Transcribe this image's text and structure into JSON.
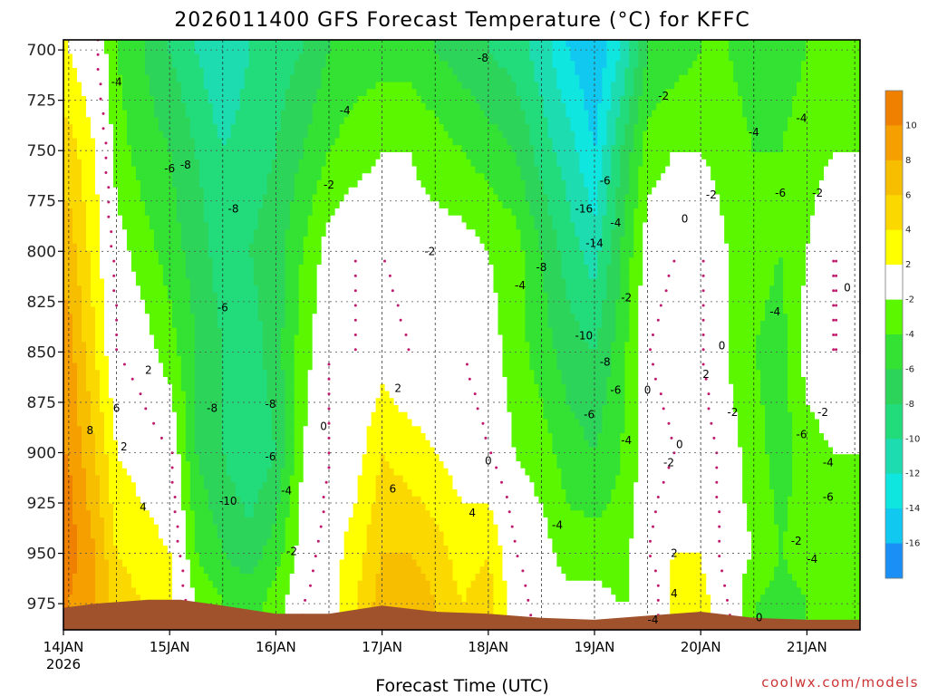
{
  "chart_data": {
    "type": "heatmap",
    "title": "2026011400 GFS Forecast Temperature (°C) for KFFC",
    "xlabel": "Forecast Time (UTC)",
    "ylabel": "",
    "watermark": "coolwx.com/models",
    "y_ticks": [
      700,
      725,
      750,
      775,
      800,
      825,
      850,
      875,
      900,
      925,
      950,
      975
    ],
    "ylim": [
      695,
      988
    ],
    "x_ticks": [
      "14JAN",
      "15JAN",
      "16JAN",
      "17JAN",
      "18JAN",
      "19JAN",
      "20JAN",
      "21JAN"
    ],
    "x_year": "2026",
    "xlim_days": [
      0,
      7.5
    ],
    "colorbar": {
      "labels": [
        "10",
        "8",
        "6",
        "4",
        "2",
        "-2",
        "-4",
        "-6",
        "-8",
        "-10",
        "-12",
        "-14",
        "-16"
      ],
      "colors": {
        "c10": "#f08000",
        "c8": "#f5a000",
        "c6": "#f7be00",
        "c4": "#fad800",
        "c2": "#ffff00",
        "c0": "#ffffff",
        "cm2": "#5af700",
        "cm4": "#33e233",
        "cm6": "#2dd45a",
        "cm8": "#22dc7c",
        "cm10": "#1cdcb0",
        "cm12": "#10e6e0",
        "cm14": "#10c8f0",
        "cm16": "#1a8ff5",
        "ground": "#a0522d",
        "line": "#c01a6e"
      }
    },
    "column_profiles": {
      "times_days": [
        0.05,
        0.3,
        0.5,
        0.75,
        1.0,
        1.25,
        1.5,
        1.75,
        2.0,
        2.25,
        2.5,
        2.75,
        3.0,
        3.25,
        3.5,
        3.75,
        4.0,
        4.25,
        4.5,
        4.75,
        5.0,
        5.25,
        5.5,
        5.75,
        6.0,
        6.25,
        6.5,
        6.75,
        7.0,
        7.25,
        7.45
      ],
      "levels_hpa": [
        700,
        750,
        800,
        850,
        900,
        950,
        975
      ],
      "temperature_c": [
        [
          2,
          5,
          7,
          9,
          10,
          11,
          10
        ],
        [
          0,
          2,
          3,
          4,
          6,
          8,
          8
        ],
        [
          -4,
          -3,
          -1,
          0,
          2,
          4,
          5
        ],
        [
          -6,
          -5,
          -3,
          -1,
          1,
          3,
          4
        ],
        [
          -8,
          -6,
          -5,
          -3,
          0,
          2,
          3
        ],
        [
          -10,
          -8,
          -7,
          -6,
          -6,
          -4,
          -2
        ],
        [
          -12,
          -10,
          -9,
          -8,
          -8,
          -6,
          -4
        ],
        [
          -10,
          -9,
          -8,
          -9,
          -10,
          -7,
          -5
        ],
        [
          -9,
          -8,
          -7,
          -7,
          -8,
          -5,
          -3
        ],
        [
          -8,
          -6,
          -4,
          -3,
          -2,
          -1,
          0
        ],
        [
          -6,
          -4,
          -1,
          0,
          0,
          1,
          1
        ],
        [
          -5,
          -3,
          0,
          0,
          1,
          3,
          4
        ],
        [
          -5,
          -2,
          0,
          1,
          4,
          6,
          7
        ],
        [
          -5,
          -2,
          -1,
          0,
          3,
          6,
          8
        ],
        [
          -6,
          -3,
          -1,
          0,
          2,
          5,
          6
        ],
        [
          -7,
          -4,
          -1,
          0,
          1,
          3,
          4
        ],
        [
          -8,
          -5,
          -2,
          -1,
          0,
          4,
          5
        ],
        [
          -9,
          -6,
          -3,
          -3,
          -2,
          0,
          1
        ],
        [
          -11,
          -9,
          -6,
          -5,
          -3,
          -1,
          -1
        ],
        [
          -14,
          -11,
          -9,
          -7,
          -5,
          -3,
          -1
        ],
        [
          -16,
          -14,
          -11,
          -8,
          -6,
          -3,
          -1
        ],
        [
          -12,
          -8,
          -6,
          -5,
          -4,
          -3,
          -2
        ],
        [
          -6,
          -3,
          -1,
          0,
          -1,
          0,
          -2
        ],
        [
          -5,
          -2,
          0,
          1,
          0,
          2,
          3
        ],
        [
          -4,
          -2,
          0,
          0,
          1,
          2,
          3
        ],
        [
          -4,
          -3,
          -2,
          -2,
          -1,
          -1,
          0
        ],
        [
          -5,
          -4,
          -3,
          -4,
          -3,
          -2,
          -4
        ],
        [
          -5,
          -4,
          -4,
          -5,
          -5,
          -4,
          -5
        ],
        [
          -4,
          -3,
          -2,
          -1,
          -3,
          -3,
          -4
        ],
        [
          -3,
          -2,
          0,
          0,
          -2,
          -3,
          -3
        ],
        [
          -3,
          -2,
          0,
          -1,
          -2,
          -3,
          -4
        ]
      ]
    },
    "contour_labels": [
      {
        "text": "-4",
        "day": 0.5,
        "p": 716
      },
      {
        "text": "-8",
        "day": 3.95,
        "p": 704
      },
      {
        "text": "-4",
        "day": 2.65,
        "p": 730
      },
      {
        "text": "-6",
        "day": 1.0,
        "p": 759
      },
      {
        "text": "-8",
        "day": 1.15,
        "p": 757
      },
      {
        "text": "-8",
        "day": 1.6,
        "p": 779
      },
      {
        "text": "-2",
        "day": 2.5,
        "p": 767
      },
      {
        "text": "-2",
        "day": 3.45,
        "p": 800
      },
      {
        "text": "-6",
        "day": 1.5,
        "p": 828
      },
      {
        "text": "2",
        "day": 0.8,
        "p": 859
      },
      {
        "text": "6",
        "day": 0.5,
        "p": 878
      },
      {
        "text": "8",
        "day": 0.25,
        "p": 889
      },
      {
        "text": "2",
        "day": 0.57,
        "p": 897
      },
      {
        "text": "4",
        "day": 0.75,
        "p": 927
      },
      {
        "text": "-8",
        "day": 1.4,
        "p": 878
      },
      {
        "text": "-8",
        "day": 1.95,
        "p": 876
      },
      {
        "text": "-6",
        "day": 1.95,
        "p": 902
      },
      {
        "text": "-4",
        "day": 2.1,
        "p": 919
      },
      {
        "text": "-10",
        "day": 1.55,
        "p": 924
      },
      {
        "text": "-2",
        "day": 2.15,
        "p": 949
      },
      {
        "text": "0",
        "day": 2.45,
        "p": 887
      },
      {
        "text": "2",
        "day": 3.15,
        "p": 868
      },
      {
        "text": "6",
        "day": 3.1,
        "p": 918
      },
      {
        "text": "0",
        "day": 4.0,
        "p": 904
      },
      {
        "text": "4",
        "day": 3.85,
        "p": 930
      },
      {
        "text": "-4",
        "day": 4.3,
        "p": 817
      },
      {
        "text": "-8",
        "day": 4.5,
        "p": 808
      },
      {
        "text": "-10",
        "day": 4.9,
        "p": 842
      },
      {
        "text": "-16",
        "day": 4.9,
        "p": 779
      },
      {
        "text": "-6",
        "day": 5.1,
        "p": 765
      },
      {
        "text": "-14",
        "day": 5.0,
        "p": 796
      },
      {
        "text": "-8",
        "day": 5.1,
        "p": 855
      },
      {
        "text": "-6",
        "day": 4.95,
        "p": 881
      },
      {
        "text": "-4",
        "day": 4.65,
        "p": 936
      },
      {
        "text": "-4",
        "day": 5.2,
        "p": 786
      },
      {
        "text": "-6",
        "day": 5.2,
        "p": 869
      },
      {
        "text": "-4",
        "day": 5.3,
        "p": 894
      },
      {
        "text": "-2",
        "day": 5.3,
        "p": 823
      },
      {
        "text": "-2",
        "day": 5.65,
        "p": 723
      },
      {
        "text": "0",
        "day": 5.85,
        "p": 784
      },
      {
        "text": "-2",
        "day": 6.1,
        "p": 772
      },
      {
        "text": "0",
        "day": 6.2,
        "p": 847
      },
      {
        "text": "2",
        "day": 6.05,
        "p": 861
      },
      {
        "text": "-2",
        "day": 6.3,
        "p": 880
      },
      {
        "text": "0",
        "day": 5.5,
        "p": 869
      },
      {
        "text": "0",
        "day": 5.8,
        "p": 896
      },
      {
        "text": "-2",
        "day": 5.7,
        "p": 905
      },
      {
        "text": "2",
        "day": 5.75,
        "p": 950
      },
      {
        "text": "4",
        "day": 5.75,
        "p": 970
      },
      {
        "text": "-4",
        "day": 5.55,
        "p": 983
      },
      {
        "text": "0",
        "day": 6.55,
        "p": 982
      },
      {
        "text": "-4",
        "day": 6.5,
        "p": 741
      },
      {
        "text": "-6",
        "day": 6.75,
        "p": 771
      },
      {
        "text": "-4",
        "day": 6.95,
        "p": 734
      },
      {
        "text": "-2",
        "day": 7.1,
        "p": 771
      },
      {
        "text": "-4",
        "day": 6.7,
        "p": 830
      },
      {
        "text": "0",
        "day": 7.38,
        "p": 818
      },
      {
        "text": "-6",
        "day": 6.95,
        "p": 891
      },
      {
        "text": "-2",
        "day": 7.15,
        "p": 880
      },
      {
        "text": "-4",
        "day": 7.2,
        "p": 905
      },
      {
        "text": "-6",
        "day": 7.2,
        "p": 922
      },
      {
        "text": "-2",
        "day": 6.9,
        "p": 944
      },
      {
        "text": "-4",
        "day": 7.05,
        "p": 953
      }
    ]
  }
}
